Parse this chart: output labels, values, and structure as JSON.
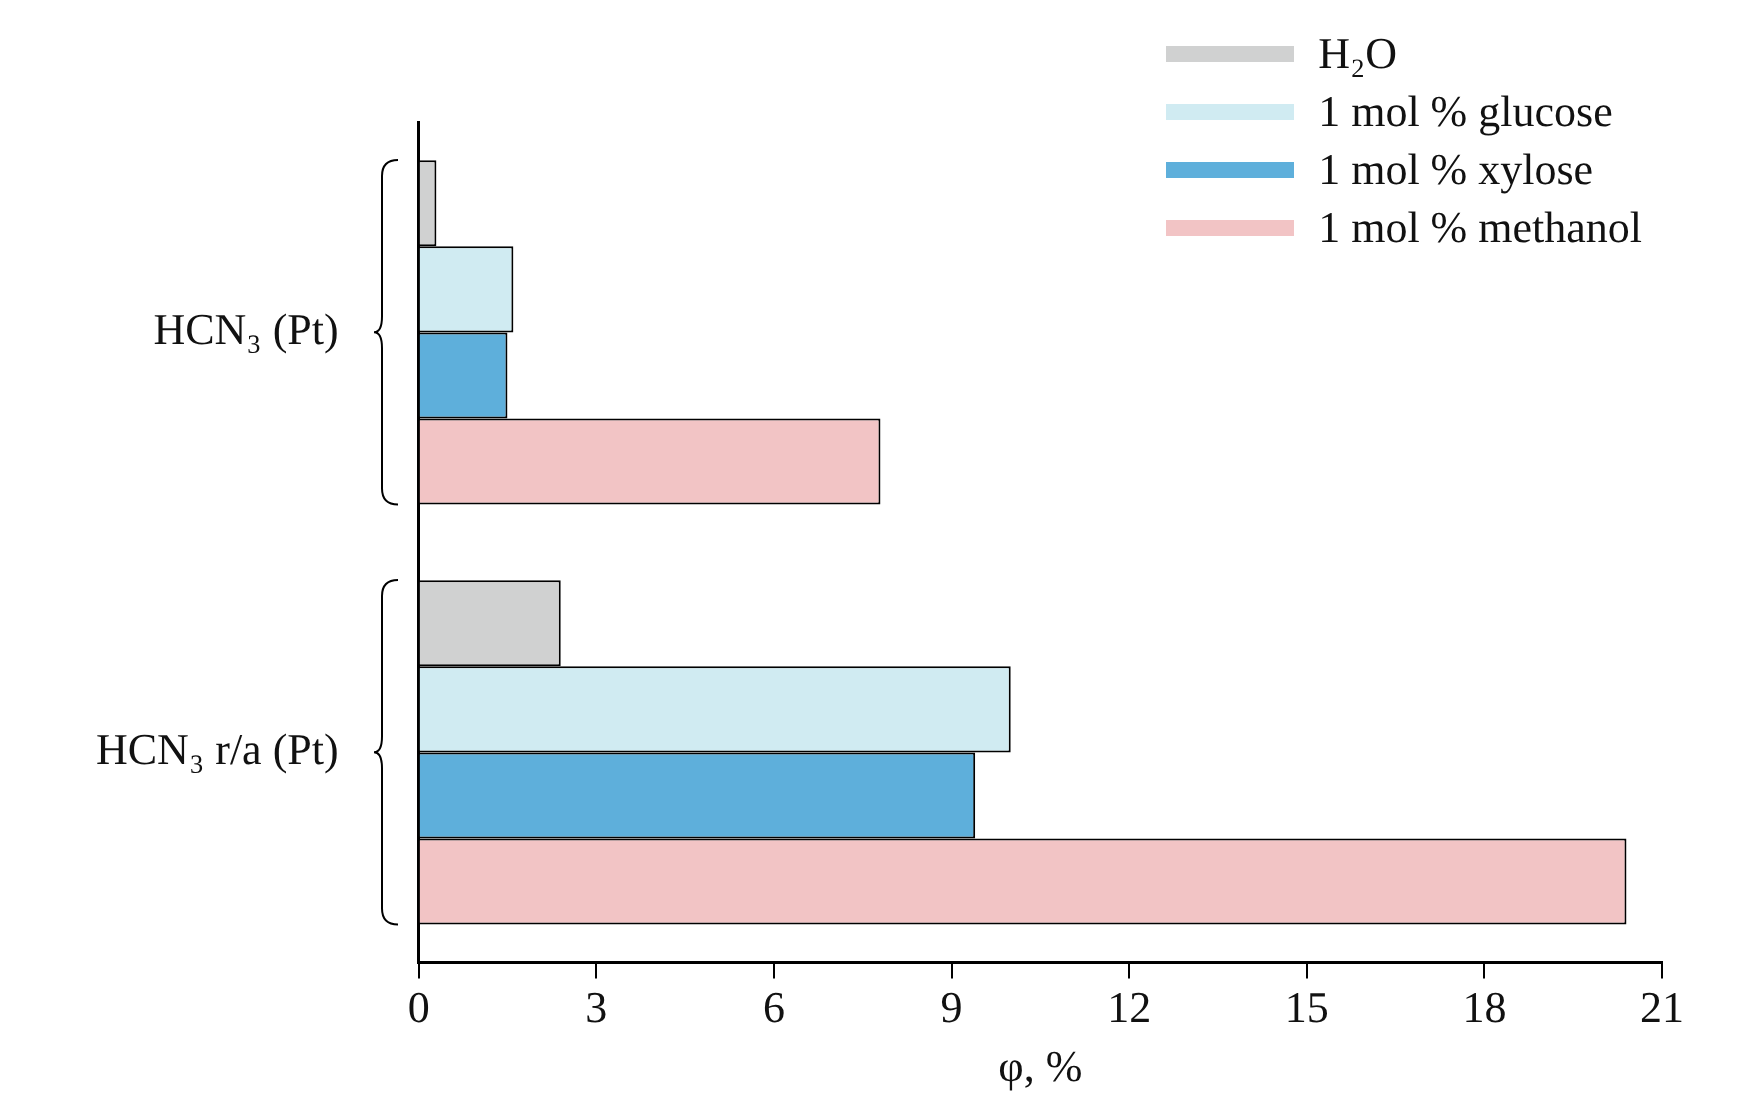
{
  "chart_data": {
    "type": "bar",
    "orientation": "horizontal",
    "categories": [
      "HCN₃ (Pt)",
      "HCN₃ r/a (Pt)"
    ],
    "xlabel": "φ, %",
    "xlim": [
      0,
      21
    ],
    "xticks": [
      0,
      3,
      6,
      9,
      12,
      15,
      18,
      21
    ],
    "grid": false,
    "legend": "top right",
    "series": [
      {
        "name": "H₂O",
        "color": "#d0d1d1",
        "values": [
          0.3,
          2.4
        ]
      },
      {
        "name": "1 mol % glucose",
        "color": "#d0ebf2",
        "values": [
          1.6,
          10.0
        ]
      },
      {
        "name": "1 mol % xylose",
        "color": "#5eafdb",
        "values": [
          1.5,
          9.4
        ]
      },
      {
        "name": "1 mol % methanol",
        "color": "#f2c4c5",
        "values": [
          7.8,
          20.4
        ]
      }
    ]
  }
}
